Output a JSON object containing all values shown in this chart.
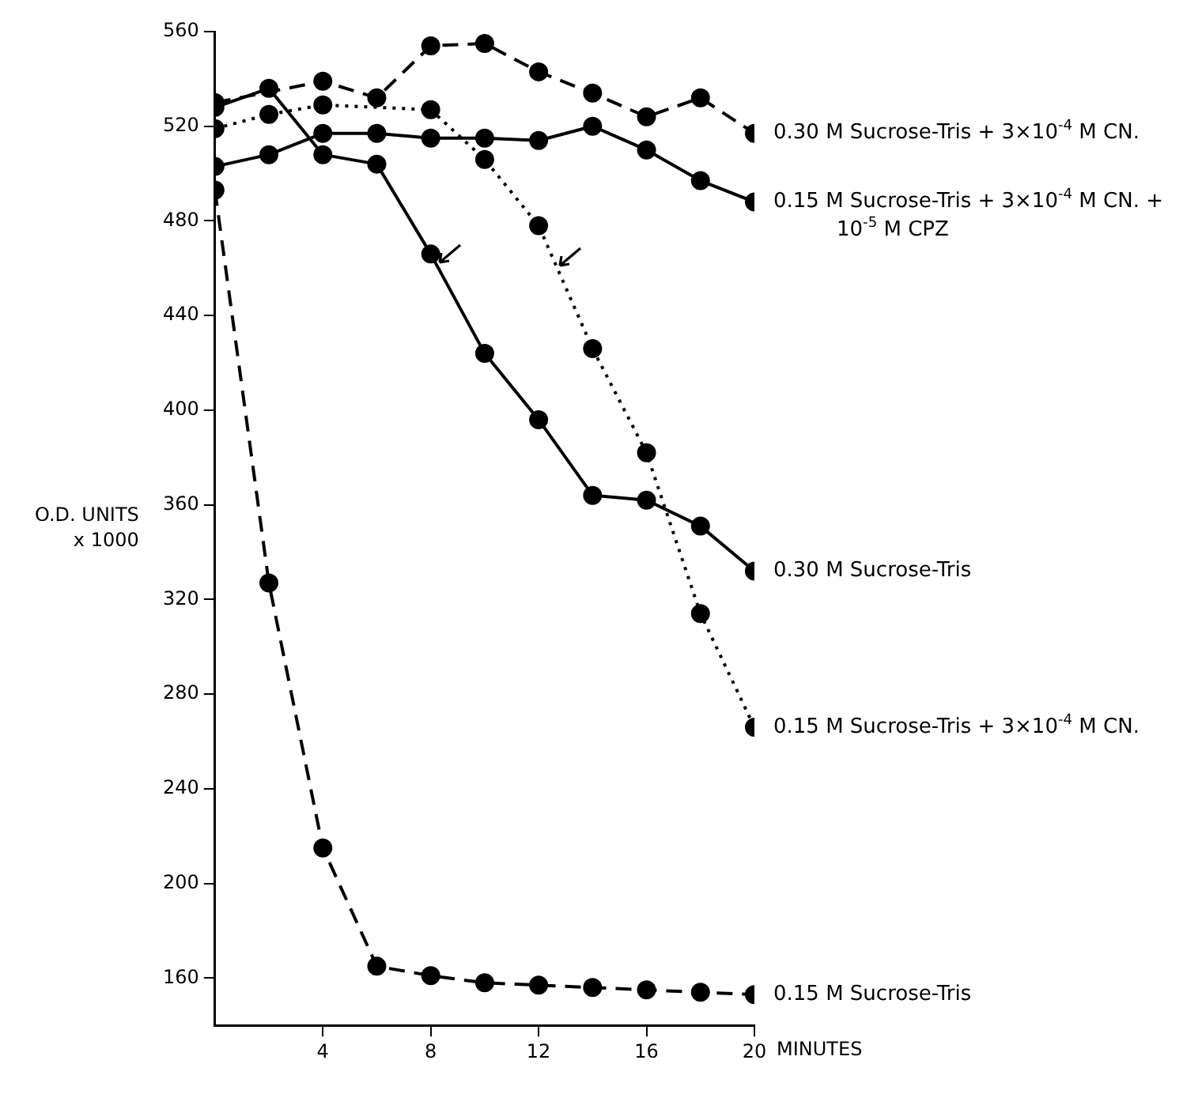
{
  "chart_data": {
    "type": "line",
    "ylabel": "O.D. UNITS x 1000",
    "xlabel": "MINUTES",
    "x": [
      0,
      2,
      4,
      6,
      8,
      10,
      12,
      14,
      16,
      18,
      20
    ],
    "series": [
      {
        "name": "0.30 M Sucrose-Tris + 3×10$^{-4}$ M CN.",
        "color": "#000000",
        "line_style": "dashed",
        "values": [
          530,
          null,
          539,
          532,
          554,
          555,
          543,
          534,
          524,
          532,
          517
        ]
      },
      {
        "name": "0.15 M Sucrose-Tris + 3×10$^{-4}$ M CN. + 10$^{-5}$ M CPZ",
        "color": "#000000",
        "line_style": "solid",
        "values": [
          503,
          508,
          517,
          517,
          515,
          515,
          514,
          520,
          510,
          497,
          488
        ]
      },
      {
        "name": "0.30 M Sucrose-Tris",
        "color": "#000000",
        "line_style": "solid",
        "values": [
          528,
          536,
          508,
          504,
          466,
          424,
          396,
          364,
          362,
          351,
          332
        ]
      },
      {
        "name": "0.15 M Sucrose-Tris + 3×10$^{-4}$ M CN.",
        "color": "#000000",
        "line_style": "dotted",
        "values": [
          519,
          525,
          529,
          null,
          527,
          506,
          478,
          426,
          382,
          314,
          266
        ]
      },
      {
        "name": "0.15 M Sucrose-Tris",
        "color": "#000000",
        "line_style": "dashed",
        "values": [
          493,
          327,
          215,
          165,
          161,
          158,
          157,
          156,
          155,
          154,
          153
        ]
      }
    ],
    "xlim": [
      0,
      20
    ],
    "xticks": [
      4,
      8,
      12,
      16,
      20
    ],
    "ylim": [
      140,
      560
    ],
    "yticks": [
      160,
      200,
      240,
      280,
      320,
      360,
      400,
      440,
      480,
      520,
      560
    ],
    "grid": false,
    "legend": false,
    "marker": "circle"
  }
}
